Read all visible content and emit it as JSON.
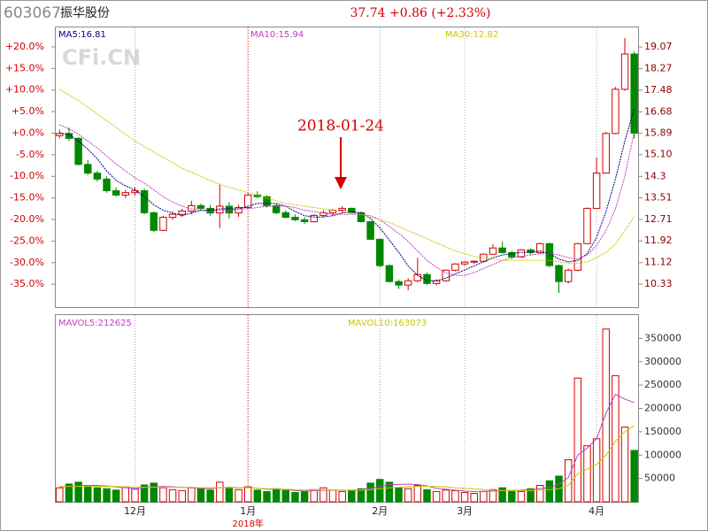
{
  "header": {
    "code": "603067",
    "name": "振华股份",
    "quote": "37.74 +0.86 (+2.33%)"
  },
  "chart_data": [
    {
      "type": "candlestick",
      "watermark": "CFi.CN",
      "annotation": "2018-01-24",
      "up_color": "#d40000",
      "down_color": "#008800",
      "categories": [
        null,
        null,
        null,
        null,
        null,
        null,
        null,
        null,
        "12月",
        null,
        null,
        null,
        null,
        null,
        null,
        null,
        null,
        null,
        null,
        null,
        "1月",
        null,
        null,
        null,
        null,
        null,
        null,
        null,
        null,
        null,
        null,
        null,
        null,
        null,
        "2月",
        null,
        null,
        null,
        null,
        null,
        null,
        null,
        null,
        "3月",
        null,
        null,
        null,
        null,
        null,
        null,
        null,
        null,
        null,
        null,
        null,
        null,
        null,
        "4月",
        null,
        null,
        null,
        null
      ],
      "x_sublabel": "2018年",
      "ylim": [
        -40.3,
        24.5
      ],
      "yticks": [
        {
          "value": 20,
          "label": "+20.0%"
        },
        {
          "value": 15,
          "label": "+15.0%"
        },
        {
          "value": 10,
          "label": "+10.0%"
        },
        {
          "value": 5,
          "label": "+5.0%"
        },
        {
          "value": 0,
          "label": "+0.0%"
        },
        {
          "value": -5,
          "label": "-5.0%"
        },
        {
          "value": -10,
          "label": "-10.0%"
        },
        {
          "value": -15,
          "label": "-15.0%"
        },
        {
          "value": -20,
          "label": "-20.0%"
        },
        {
          "value": -25,
          "label": "-25.0%"
        },
        {
          "value": -30,
          "label": "-30.0%"
        },
        {
          "value": -35,
          "label": "-35.0%"
        }
      ],
      "y2lim": [
        9.48,
        19.79
      ],
      "y2ticks": [
        19.07,
        18.27,
        17.48,
        16.68,
        15.89,
        {
          "value": 15.1,
          "label": "15.10"
        },
        14.3,
        13.51,
        12.71,
        11.92,
        11.12,
        10.33
      ],
      "ohlc": [
        [
          15.8,
          16.02,
          15.7,
          15.88
        ],
        [
          15.88,
          16.1,
          15.6,
          15.7
        ],
        [
          15.7,
          15.75,
          14.7,
          14.74
        ],
        [
          14.74,
          14.9,
          14.35,
          14.42
        ],
        [
          14.42,
          14.5,
          14.1,
          14.2
        ],
        [
          14.2,
          14.3,
          13.7,
          13.77
        ],
        [
          13.77,
          13.9,
          13.55,
          13.61
        ],
        [
          13.61,
          13.8,
          13.5,
          13.7
        ],
        [
          13.7,
          13.9,
          13.58,
          13.77
        ],
        [
          13.77,
          13.85,
          12.9,
          12.96
        ],
        [
          12.96,
          13.0,
          12.25,
          12.31
        ],
        [
          12.31,
          12.85,
          12.28,
          12.79
        ],
        [
          12.79,
          13.0,
          12.7,
          12.9
        ],
        [
          12.9,
          13.1,
          12.8,
          13.02
        ],
        [
          13.02,
          13.4,
          12.9,
          13.22
        ],
        [
          13.22,
          13.3,
          13.05,
          13.12
        ],
        [
          13.12,
          13.25,
          12.85,
          12.95
        ],
        [
          12.95,
          14.03,
          12.4,
          13.2
        ],
        [
          13.2,
          13.35,
          12.75,
          12.95
        ],
        [
          12.95,
          13.25,
          12.8,
          13.15
        ],
        [
          13.15,
          13.7,
          13.1,
          13.61
        ],
        [
          13.61,
          13.75,
          13.5,
          13.55
        ],
        [
          13.55,
          13.6,
          13.15,
          13.22
        ],
        [
          13.22,
          13.3,
          12.9,
          12.96
        ],
        [
          12.96,
          13.05,
          12.75,
          12.79
        ],
        [
          12.79,
          12.9,
          12.65,
          12.7
        ],
        [
          12.7,
          12.8,
          12.55,
          12.63
        ],
        [
          12.63,
          12.9,
          12.6,
          12.86
        ],
        [
          12.86,
          13.05,
          12.8,
          12.96
        ],
        [
          12.96,
          13.1,
          12.85,
          13.05
        ],
        [
          13.05,
          13.2,
          12.98,
          13.12
        ],
        [
          13.12,
          13.15,
          12.92,
          12.96
        ],
        [
          12.96,
          13.0,
          12.6,
          12.63
        ],
        [
          12.63,
          12.65,
          11.95,
          11.98
        ],
        [
          11.98,
          12.0,
          10.95,
          11.01
        ],
        [
          11.01,
          11.05,
          10.4,
          10.42
        ],
        [
          10.42,
          10.5,
          10.15,
          10.29
        ],
        [
          10.29,
          10.55,
          10.1,
          10.45
        ],
        [
          10.45,
          11.3,
          10.4,
          10.68
        ],
        [
          10.68,
          10.75,
          10.3,
          10.35
        ],
        [
          10.35,
          10.5,
          10.28,
          10.45
        ],
        [
          10.45,
          10.86,
          10.42,
          10.84
        ],
        [
          10.84,
          11.1,
          10.8,
          11.07
        ],
        [
          11.07,
          11.18,
          11.0,
          11.14
        ],
        [
          11.14,
          11.2,
          11.08,
          11.17
        ],
        [
          11.17,
          11.45,
          11.12,
          11.43
        ],
        [
          11.43,
          11.8,
          11.4,
          11.66
        ],
        [
          11.66,
          11.9,
          11.45,
          11.49
        ],
        [
          11.49,
          11.55,
          11.25,
          11.33
        ],
        [
          11.33,
          11.62,
          11.3,
          11.59
        ],
        [
          11.59,
          11.65,
          11.4,
          11.49
        ],
        [
          11.49,
          11.85,
          11.45,
          11.82
        ],
        [
          11.82,
          11.85,
          10.95,
          11.01
        ],
        [
          11.01,
          11.05,
          10.0,
          10.42
        ],
        [
          10.42,
          10.9,
          10.35,
          10.84
        ],
        [
          10.84,
          11.85,
          10.8,
          11.82
        ],
        [
          11.82,
          13.15,
          11.8,
          13.12
        ],
        [
          13.12,
          15.0,
          13.1,
          14.42
        ],
        [
          14.42,
          15.95,
          14.4,
          15.88
        ],
        [
          15.88,
          17.6,
          15.85,
          17.51
        ],
        [
          17.51,
          19.4,
          17.45,
          18.81
        ],
        [
          18.81,
          18.9,
          15.7,
          15.89
        ]
      ],
      "series": [
        {
          "name": "MA5:16.81",
          "color": "#000080",
          "axis": "y2",
          "values": [
            15.9,
            15.85,
            15.6,
            15.3,
            14.95,
            14.5,
            14.15,
            13.95,
            13.8,
            13.55,
            13.25,
            13.05,
            12.95,
            12.85,
            12.95,
            13.05,
            13.05,
            13.1,
            13.1,
            13.1,
            13.2,
            13.3,
            13.3,
            13.3,
            13.2,
            13.0,
            12.85,
            12.8,
            12.8,
            12.85,
            12.95,
            13.0,
            12.95,
            12.75,
            12.4,
            11.95,
            11.5,
            11.0,
            10.65,
            10.45,
            10.45,
            10.55,
            10.7,
            10.85,
            11.0,
            11.15,
            11.3,
            11.4,
            11.45,
            11.5,
            11.5,
            11.55,
            11.45,
            11.25,
            11.15,
            11.2,
            11.45,
            12.05,
            13.0,
            14.2,
            15.6,
            16.81
          ]
        },
        {
          "name": "MA10:15.94",
          "color": "#c040c0",
          "axis": "y2",
          "values": [
            16.2,
            16.05,
            15.85,
            15.6,
            15.35,
            15.05,
            14.75,
            14.5,
            14.25,
            14.05,
            13.8,
            13.55,
            13.35,
            13.2,
            13.1,
            13.05,
            13.0,
            13.05,
            13.05,
            13.1,
            13.1,
            13.15,
            13.2,
            13.2,
            13.2,
            13.15,
            13.05,
            13.0,
            12.95,
            12.9,
            12.9,
            12.9,
            12.9,
            12.85,
            12.7,
            12.45,
            12.2,
            11.9,
            11.55,
            11.2,
            10.95,
            10.75,
            10.65,
            10.65,
            10.75,
            10.9,
            11.05,
            11.2,
            11.3,
            11.35,
            11.4,
            11.45,
            11.45,
            11.4,
            11.3,
            11.25,
            11.4,
            11.75,
            12.3,
            13.1,
            14.3,
            15.94
          ]
        },
        {
          "name": "MA30:12.82",
          "color": "#c8c800",
          "axis": "y2",
          "values": [
            17.5,
            17.3,
            17.1,
            16.85,
            16.6,
            16.35,
            16.1,
            15.85,
            15.6,
            15.4,
            15.2,
            15.0,
            14.8,
            14.6,
            14.45,
            14.3,
            14.15,
            14.0,
            13.9,
            13.8,
            13.7,
            13.6,
            13.5,
            13.4,
            13.3,
            13.25,
            13.2,
            13.15,
            13.1,
            13.05,
            13.0,
            12.95,
            12.9,
            12.8,
            12.7,
            12.6,
            12.45,
            12.3,
            12.15,
            12.0,
            11.85,
            11.7,
            11.55,
            11.45,
            11.35,
            11.3,
            11.25,
            11.2,
            11.2,
            11.2,
            11.2,
            11.2,
            11.2,
            11.15,
            11.1,
            11.1,
            11.15,
            11.3,
            11.5,
            11.8,
            12.3,
            12.82
          ]
        }
      ]
    },
    {
      "type": "bar",
      "ylim": [
        0,
        400000
      ],
      "yticks": [
        350000,
        300000,
        250000,
        200000,
        150000,
        100000,
        50000
      ],
      "values": [
        30000,
        38000,
        42000,
        35000,
        30000,
        28000,
        25000,
        32000,
        27000,
        36000,
        40000,
        30000,
        26000,
        24000,
        30000,
        28000,
        25000,
        42000,
        30000,
        26000,
        32000,
        25000,
        22000,
        28000,
        24000,
        20000,
        22000,
        26000,
        30000,
        25000,
        22000,
        24000,
        28000,
        40000,
        48000,
        42000,
        30000,
        28000,
        35000,
        26000,
        22000,
        25000,
        24000,
        20000,
        18000,
        22000,
        26000,
        30000,
        24000,
        22000,
        28000,
        35000,
        45000,
        55000,
        90000,
        265000,
        120000,
        135000,
        370000,
        270000,
        160000,
        110000
      ],
      "series": [
        {
          "name": "MAVOL5:212625",
          "color": "#c040c0",
          "values": [
            32000,
            33000,
            34000,
            35000,
            35000,
            34000,
            32000,
            30000,
            28000,
            30000,
            32000,
            33000,
            32000,
            31000,
            30000,
            29000,
            28000,
            30000,
            31000,
            30000,
            31000,
            29000,
            27000,
            27000,
            26000,
            24000,
            23000,
            24000,
            25000,
            25000,
            25000,
            25000,
            26000,
            29000,
            33000,
            37000,
            37000,
            38000,
            37000,
            34000,
            29000,
            27000,
            25000,
            23000,
            22000,
            22000,
            23000,
            24000,
            24000,
            25000,
            26000,
            28000,
            31000,
            37000,
            52000,
            100000,
            115000,
            135000,
            190000,
            230000,
            220000,
            212625
          ]
        },
        {
          "name": "MAVOL10:163073",
          "color": "#c8c800",
          "values": [
            33000,
            33000,
            33000,
            33000,
            33000,
            33000,
            33000,
            32000,
            31000,
            31000,
            31000,
            31000,
            31000,
            31000,
            31000,
            30000,
            30000,
            30000,
            30000,
            30000,
            30000,
            29000,
            28000,
            28000,
            27000,
            26000,
            26000,
            26000,
            26000,
            25000,
            25000,
            25000,
            25000,
            26000,
            28000,
            30000,
            31000,
            32000,
            33000,
            33000,
            33000,
            32000,
            30000,
            29000,
            28000,
            26000,
            25000,
            24000,
            24000,
            24000,
            24000,
            25000,
            26000,
            28000,
            35000,
            60000,
            70000,
            80000,
            100000,
            130000,
            150000,
            163073
          ]
        }
      ]
    }
  ]
}
